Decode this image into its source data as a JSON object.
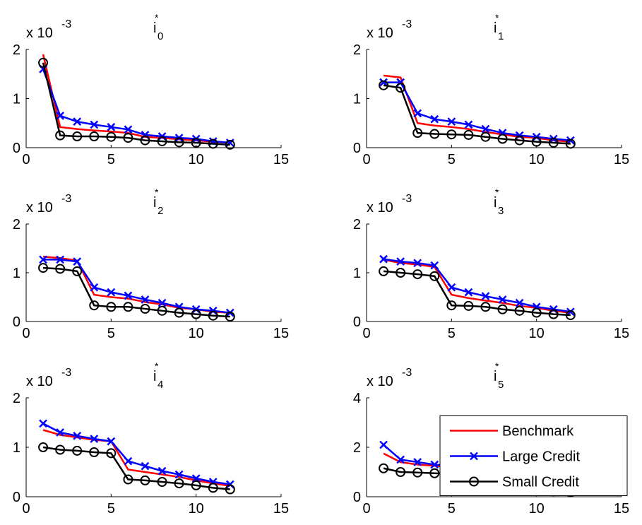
{
  "chart_data": [
    {
      "type": "line",
      "title": "i",
      "title_superscript": "*",
      "title_subscript": "0",
      "y_multiplier": "x 10",
      "y_exponent": "-3",
      "x": [
        1,
        2,
        3,
        4,
        5,
        6,
        7,
        8,
        9,
        10,
        11,
        12
      ],
      "xlim": [
        0,
        15
      ],
      "xticks": [
        0,
        5,
        10,
        15
      ],
      "ylim": [
        0,
        2
      ],
      "yticks": [
        0,
        1,
        2
      ],
      "series": [
        {
          "color": "#ff0000",
          "marker": "none",
          "values": [
            1.9,
            0.42,
            0.38,
            0.35,
            0.33,
            0.3,
            0.22,
            0.2,
            0.17,
            0.15,
            0.12,
            0.1
          ]
        },
        {
          "color": "#0000ff",
          "marker": "x",
          "values": [
            1.6,
            0.65,
            0.53,
            0.47,
            0.42,
            0.37,
            0.26,
            0.23,
            0.2,
            0.18,
            0.13,
            0.1
          ]
        },
        {
          "color": "#000000",
          "marker": "o",
          "values": [
            1.73,
            0.25,
            0.23,
            0.23,
            0.22,
            0.2,
            0.15,
            0.13,
            0.11,
            0.1,
            0.08,
            0.06
          ]
        }
      ]
    },
    {
      "type": "line",
      "title": "i",
      "title_superscript": "*",
      "title_subscript": "1",
      "y_multiplier": "x 10",
      "y_exponent": "-3",
      "x": [
        1,
        2,
        3,
        4,
        5,
        6,
        7,
        8,
        9,
        10,
        11,
        12
      ],
      "xlim": [
        0,
        15
      ],
      "xticks": [
        0,
        5,
        10,
        15
      ],
      "ylim": [
        0,
        2
      ],
      "yticks": [
        0,
        1,
        2
      ],
      "series": [
        {
          "color": "#ff0000",
          "marker": "none",
          "values": [
            1.47,
            1.43,
            0.5,
            0.45,
            0.42,
            0.38,
            0.32,
            0.27,
            0.22,
            0.2,
            0.15,
            0.12
          ]
        },
        {
          "color": "#0000ff",
          "marker": "x",
          "values": [
            1.33,
            1.33,
            0.7,
            0.58,
            0.53,
            0.47,
            0.38,
            0.3,
            0.25,
            0.22,
            0.18,
            0.15
          ]
        },
        {
          "color": "#000000",
          "marker": "o",
          "values": [
            1.27,
            1.22,
            0.3,
            0.28,
            0.27,
            0.26,
            0.22,
            0.18,
            0.15,
            0.12,
            0.1,
            0.08
          ]
        }
      ]
    },
    {
      "type": "line",
      "title": "i",
      "title_superscript": "*",
      "title_subscript": "2",
      "y_multiplier": "x 10",
      "y_exponent": "-3",
      "x": [
        1,
        2,
        3,
        4,
        5,
        6,
        7,
        8,
        9,
        10,
        11,
        12
      ],
      "xlim": [
        0,
        15
      ],
      "xticks": [
        0,
        5,
        10,
        15
      ],
      "ylim": [
        0,
        2
      ],
      "yticks": [
        0,
        1,
        2
      ],
      "series": [
        {
          "color": "#ff0000",
          "marker": "none",
          "values": [
            1.33,
            1.3,
            1.25,
            0.55,
            0.5,
            0.47,
            0.4,
            0.35,
            0.28,
            0.25,
            0.2,
            0.18
          ]
        },
        {
          "color": "#0000ff",
          "marker": "x",
          "values": [
            1.27,
            1.27,
            1.23,
            0.7,
            0.6,
            0.53,
            0.45,
            0.38,
            0.3,
            0.25,
            0.22,
            0.18
          ]
        },
        {
          "color": "#000000",
          "marker": "o",
          "values": [
            1.1,
            1.08,
            1.03,
            0.33,
            0.3,
            0.3,
            0.26,
            0.22,
            0.18,
            0.15,
            0.12,
            0.1
          ]
        }
      ]
    },
    {
      "type": "line",
      "title": "i",
      "title_superscript": "*",
      "title_subscript": "3",
      "y_multiplier": "x 10",
      "y_exponent": "-3",
      "x": [
        1,
        2,
        3,
        4,
        5,
        6,
        7,
        8,
        9,
        10,
        11,
        12
      ],
      "xlim": [
        0,
        15
      ],
      "xticks": [
        0,
        5,
        10,
        15
      ],
      "ylim": [
        0,
        2
      ],
      "yticks": [
        0,
        1,
        2
      ],
      "series": [
        {
          "color": "#ff0000",
          "marker": "none",
          "values": [
            1.27,
            1.2,
            1.17,
            1.12,
            0.55,
            0.48,
            0.43,
            0.38,
            0.32,
            0.28,
            0.22,
            0.18
          ]
        },
        {
          "color": "#0000ff",
          "marker": "x",
          "values": [
            1.28,
            1.23,
            1.2,
            1.15,
            0.7,
            0.6,
            0.52,
            0.45,
            0.38,
            0.3,
            0.25,
            0.2
          ]
        },
        {
          "color": "#000000",
          "marker": "o",
          "values": [
            1.03,
            1.0,
            0.97,
            0.93,
            0.33,
            0.32,
            0.3,
            0.25,
            0.22,
            0.18,
            0.15,
            0.13
          ]
        }
      ]
    },
    {
      "type": "line",
      "title": "i",
      "title_superscript": "*",
      "title_subscript": "4",
      "y_multiplier": "x 10",
      "y_exponent": "-3",
      "x": [
        1,
        2,
        3,
        4,
        5,
        6,
        7,
        8,
        9,
        10,
        11,
        12
      ],
      "xlim": [
        0,
        15
      ],
      "xticks": [
        0,
        5,
        10,
        15
      ],
      "ylim": [
        0,
        2
      ],
      "yticks": [
        0,
        1,
        2
      ],
      "series": [
        {
          "color": "#ff0000",
          "marker": "none",
          "values": [
            1.35,
            1.25,
            1.2,
            1.15,
            1.12,
            0.55,
            0.5,
            0.45,
            0.4,
            0.33,
            0.27,
            0.22
          ]
        },
        {
          "color": "#0000ff",
          "marker": "x",
          "values": [
            1.48,
            1.3,
            1.23,
            1.17,
            1.12,
            0.72,
            0.62,
            0.52,
            0.45,
            0.37,
            0.3,
            0.25
          ]
        },
        {
          "color": "#000000",
          "marker": "o",
          "values": [
            1.0,
            0.95,
            0.93,
            0.9,
            0.88,
            0.35,
            0.33,
            0.3,
            0.27,
            0.23,
            0.18,
            0.15
          ]
        }
      ]
    },
    {
      "type": "line",
      "title": "i",
      "title_superscript": "*",
      "title_subscript": "5",
      "y_multiplier": "x 10",
      "y_exponent": "-3",
      "x": [
        1,
        2,
        3,
        4,
        5,
        6,
        7,
        8,
        9,
        10,
        11,
        12
      ],
      "xlim": [
        0,
        15
      ],
      "xticks": [
        0,
        5,
        10,
        15
      ],
      "ylim": [
        0,
        4
      ],
      "yticks": [
        0,
        2,
        4
      ],
      "legend": "east",
      "series": [
        {
          "name": "Benchmark",
          "color": "#ff0000",
          "marker": "none",
          "values": [
            1.75,
            1.4,
            1.3,
            1.25,
            1.2,
            1.15,
            0.5,
            0.45,
            0.4,
            0.35,
            0.3,
            0.25
          ]
        },
        {
          "name": "Large Credit",
          "color": "#0000ff",
          "marker": "x",
          "values": [
            2.1,
            1.5,
            1.4,
            1.3,
            1.25,
            1.2,
            0.6,
            0.52,
            0.45,
            0.4,
            0.33,
            0.28
          ]
        },
        {
          "name": "Small Credit",
          "color": "#000000",
          "marker": "o",
          "values": [
            1.15,
            1.0,
            0.98,
            0.95,
            0.92,
            0.9,
            0.35,
            0.33,
            0.3,
            0.28,
            0.22,
            0.18
          ]
        }
      ]
    }
  ]
}
